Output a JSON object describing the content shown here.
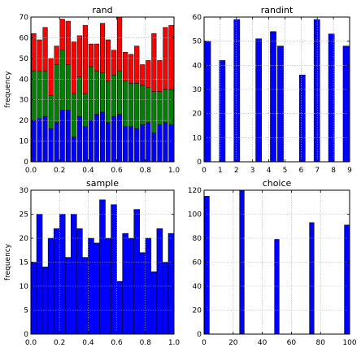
{
  "chart_data": [
    {
      "type": "bar",
      "subtype": "stacked-histogram",
      "title": "rand",
      "ylabel": "frequency",
      "xlim": [
        0,
        1
      ],
      "ylim": [
        0,
        70
      ],
      "xticks": [
        0.0,
        0.2,
        0.4,
        0.6,
        0.8,
        1.0
      ],
      "xtick_labels": [
        "0.0",
        "0.2",
        "0.4",
        "0.6",
        "0.8",
        "1.0"
      ],
      "yticks": [
        0,
        10,
        20,
        30,
        40,
        50,
        60,
        70
      ],
      "ytick_labels": [
        "0",
        "10",
        "20",
        "30",
        "40",
        "50",
        "60",
        "70"
      ],
      "grid": true,
      "bins": 25,
      "bar_width_fraction": 0.8,
      "colors": [
        "#0000ff",
        "#008000",
        "#ff0000"
      ],
      "series": [
        {
          "values": [
            20,
            21,
            22,
            16,
            19,
            25,
            25,
            12,
            22,
            17,
            20,
            23,
            24,
            19,
            22,
            23,
            17,
            17,
            16,
            18,
            19,
            14,
            18,
            19,
            18
          ]
        },
        {
          "values": [
            24,
            23,
            22,
            16,
            28,
            29,
            22,
            21,
            19,
            16,
            26,
            21,
            19,
            20,
            20,
            21,
            22,
            21,
            22,
            19,
            17,
            20,
            16,
            16,
            17
          ]
        },
        {
          "values": [
            18,
            15,
            21,
            18,
            9,
            15,
            21,
            25,
            20,
            33,
            11,
            13,
            24,
            20,
            12,
            26,
            14,
            14,
            18,
            10,
            13,
            28,
            15,
            30,
            31
          ]
        }
      ]
    },
    {
      "type": "bar",
      "subtype": "histogram",
      "title": "randint",
      "ylabel": "",
      "xlim": [
        0,
        9
      ],
      "ylim": [
        0,
        60
      ],
      "xticks": [
        0,
        1,
        2,
        3,
        4,
        5,
        6,
        7,
        8,
        9
      ],
      "xtick_labels": [
        "0",
        "1",
        "2",
        "3",
        "4",
        "5",
        "6",
        "7",
        "8",
        "9"
      ],
      "yticks": [
        0,
        10,
        20,
        30,
        40,
        50,
        60
      ],
      "ytick_labels": [
        "0",
        "10",
        "20",
        "30",
        "40",
        "50",
        "60"
      ],
      "grid": true,
      "bins": 20,
      "bar_width_fraction": 0.8,
      "colors": [
        "#0000ff"
      ],
      "series": [
        {
          "values": [
            50,
            0,
            42,
            0,
            59,
            0,
            0,
            51,
            0,
            54,
            48,
            0,
            0,
            36,
            0,
            59,
            0,
            53,
            0,
            48
          ]
        }
      ]
    },
    {
      "type": "bar",
      "subtype": "histogram",
      "title": "sample",
      "ylabel": "frequency",
      "xlim": [
        0,
        1
      ],
      "ylim": [
        0,
        30
      ],
      "xticks": [
        0.0,
        0.2,
        0.4,
        0.6,
        0.8,
        1.0
      ],
      "xtick_labels": [
        "0.0",
        "0.2",
        "0.4",
        "0.6",
        "0.8",
        "1.0"
      ],
      "yticks": [
        0,
        5,
        10,
        15,
        20,
        25,
        30
      ],
      "ytick_labels": [
        "0",
        "5",
        "10",
        "15",
        "20",
        "25",
        "30"
      ],
      "grid": true,
      "bins": 25,
      "bar_width_fraction": 1.0,
      "colors": [
        "#0000ff"
      ],
      "series": [
        {
          "values": [
            15,
            25,
            14,
            20,
            22,
            25,
            16,
            25,
            22,
            16,
            20,
            19,
            28,
            20,
            27,
            11,
            21,
            20,
            26,
            17,
            20,
            13,
            22,
            15,
            21
          ]
        }
      ]
    },
    {
      "type": "bar",
      "subtype": "histogram",
      "title": "choice",
      "ylabel": "",
      "xlim": [
        0,
        100
      ],
      "ylim": [
        0,
        120
      ],
      "xticks": [
        0,
        20,
        40,
        60,
        80,
        100
      ],
      "xtick_labels": [
        "0",
        "20",
        "40",
        "60",
        "80",
        "100"
      ],
      "yticks": [
        0,
        20,
        40,
        60,
        80,
        100,
        120
      ],
      "ytick_labels": [
        "0",
        "20",
        "40",
        "60",
        "80",
        "100",
        "120"
      ],
      "grid": true,
      "bins": 25,
      "bar_width_fraction": 0.8,
      "colors": [
        "#0000ff"
      ],
      "series": [
        {
          "values": [
            115,
            0,
            0,
            0,
            0,
            0,
            120,
            0,
            0,
            0,
            0,
            0,
            79,
            0,
            0,
            0,
            0,
            0,
            93,
            0,
            0,
            0,
            0,
            0,
            91
          ]
        }
      ]
    }
  ]
}
